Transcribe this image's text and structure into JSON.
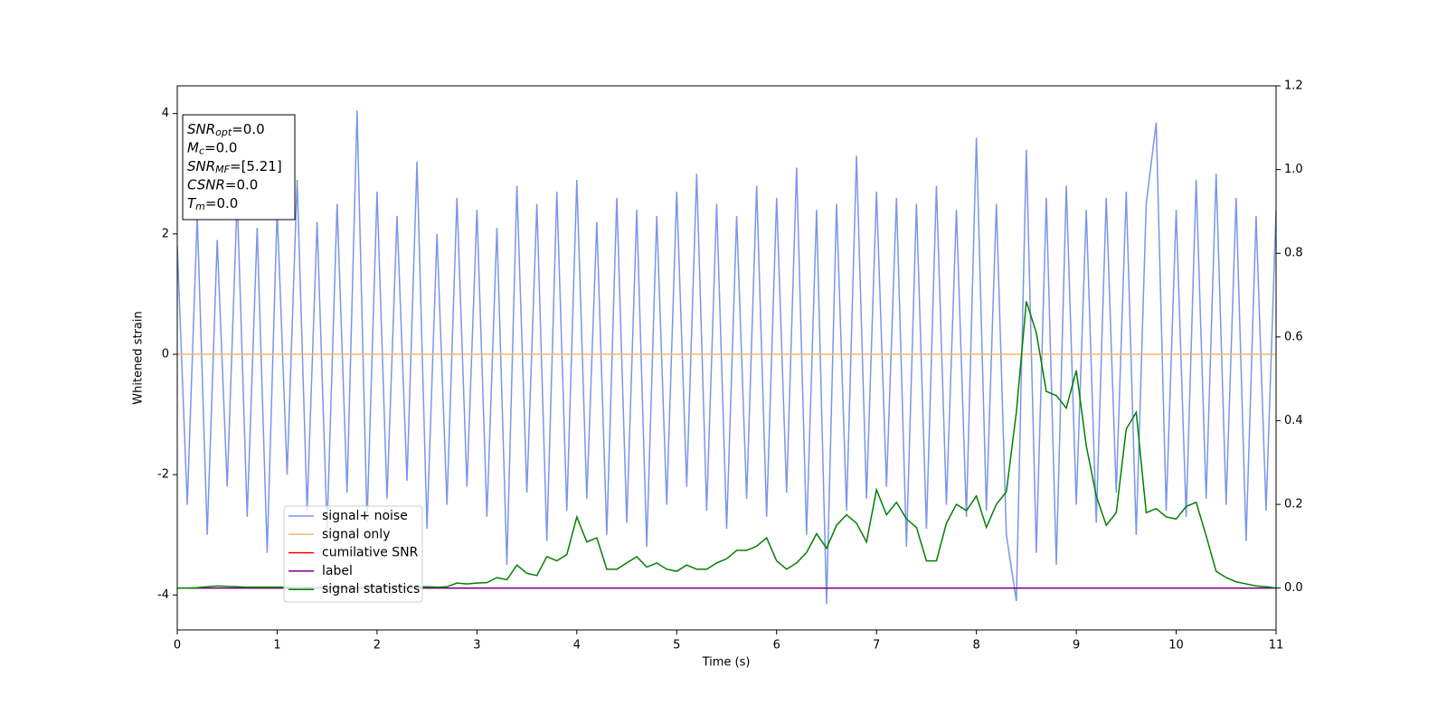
{
  "chart_data": {
    "type": "line",
    "xlabel": "Time (s)",
    "ylabel": "Whitened strain",
    "xlim": [
      0,
      11
    ],
    "xticks": [
      0,
      1,
      2,
      3,
      4,
      5,
      6,
      7,
      8,
      9,
      10,
      11
    ],
    "ylim": [
      -4.58,
      4.46
    ],
    "yticks": [
      -4,
      -2,
      0,
      2,
      4
    ],
    "y2lim": [
      -0.1,
      1.2
    ],
    "y2ticks": [
      {
        "value": 0,
        "label": "0.0"
      },
      0.2,
      0.4,
      0.6,
      0.8,
      {
        "value": 1,
        "label": "1.0"
      },
      1.2
    ],
    "x": [
      0,
      0.1,
      0.2,
      0.3,
      0.4,
      0.5,
      0.6,
      0.7,
      0.8,
      0.9,
      1,
      1.1,
      1.2,
      1.3,
      1.4,
      1.5,
      1.6,
      1.7,
      1.8,
      1.9,
      2,
      2.1,
      2.2,
      2.3,
      2.4,
      2.5,
      2.6,
      2.7,
      2.8,
      2.9,
      3,
      3.1,
      3.2,
      3.3,
      3.4,
      3.5,
      3.6,
      3.7,
      3.8,
      3.9,
      4,
      4.1,
      4.2,
      4.3,
      4.4,
      4.5,
      4.6,
      4.7,
      4.8,
      4.9,
      5,
      5.1,
      5.2,
      5.3,
      5.4,
      5.5,
      5.6,
      5.7,
      5.8,
      5.9,
      6,
      6.1,
      6.2,
      6.3,
      6.4,
      6.5,
      6.6,
      6.7,
      6.8,
      6.9,
      7,
      7.1,
      7.2,
      7.3,
      7.4,
      7.5,
      7.6,
      7.7,
      7.8,
      7.9,
      8,
      8.1,
      8.2,
      8.3,
      8.4,
      8.5,
      8.6,
      8.7,
      8.8,
      8.9,
      9,
      9.1,
      9.2,
      9.3,
      9.4,
      9.5,
      9.6,
      9.7,
      9.8,
      9.9,
      10,
      10.1,
      10.2,
      10.3,
      10.4,
      10.5,
      10.6,
      10.7,
      10.8,
      10.9,
      11
    ],
    "series": [
      {
        "name": "signal+ noise",
        "color": "#7b96e8",
        "values": [
          1.8,
          -2.5,
          2.3,
          -3.0,
          1.9,
          -2.2,
          2.6,
          -2.7,
          2.1,
          -3.3,
          2.4,
          -2.0,
          2.9,
          -2.6,
          2.2,
          -2.9,
          2.5,
          -2.3,
          4.05,
          -2.8,
          2.7,
          -2.4,
          2.3,
          -2.1,
          3.2,
          -2.9,
          2.0,
          -2.5,
          2.6,
          -2.2,
          2.4,
          -2.7,
          2.1,
          -3.5,
          2.8,
          -2.3,
          2.5,
          -3.1,
          2.7,
          -2.6,
          2.9,
          -2.4,
          2.2,
          -3.0,
          2.6,
          -2.8,
          2.4,
          -3.2,
          2.3,
          -2.5,
          2.7,
          -2.2,
          3.0,
          -2.6,
          2.5,
          -2.9,
          2.3,
          -2.4,
          2.8,
          -2.7,
          2.6,
          -2.3,
          3.1,
          -3.0,
          2.4,
          -4.15,
          2.5,
          -2.6,
          3.3,
          -2.4,
          2.7,
          -2.2,
          2.6,
          -3.2,
          2.5,
          -2.9,
          2.8,
          -2.5,
          2.4,
          -2.7,
          3.6,
          -2.6,
          2.5,
          -3.0,
          -4.1,
          3.4,
          -3.3,
          2.6,
          -3.5,
          2.8,
          -2.5,
          2.4,
          -2.8,
          2.6,
          -2.3,
          2.7,
          -3.0,
          2.5,
          3.85,
          -2.6,
          2.4,
          -2.7,
          2.9,
          -2.4,
          3.0,
          -2.5,
          2.6,
          -3.1,
          2.3,
          -2.6,
          2.4
        ]
      },
      {
        "name": "signal only",
        "color": "#f5b971",
        "x": [
          0,
          11
        ],
        "values": [
          0,
          0
        ]
      },
      {
        "name": "cumilative SNR",
        "color": "#ff0000",
        "axis": "y2",
        "x": [
          0,
          11
        ],
        "values": [
          0,
          0
        ]
      },
      {
        "name": "label",
        "color": "#800080",
        "axis": "y2",
        "x": [
          0,
          11
        ],
        "values": [
          0,
          0
        ]
      },
      {
        "name": "signal statistics",
        "color": "#008000",
        "axis": "y2",
        "values": [
          0,
          0,
          0.001,
          0.003,
          0.005,
          0.004,
          0.003,
          0.002,
          0.002,
          0.002,
          0.002,
          0.002,
          0.001,
          0.002,
          0.001,
          0.001,
          0.002,
          0.002,
          0.001,
          0.002,
          0.002,
          0.001,
          0.002,
          0.001,
          0.002,
          0.003,
          0.002,
          0.003,
          0.012,
          0.01,
          0.012,
          0.013,
          0.025,
          0.02,
          0.055,
          0.035,
          0.03,
          0.075,
          0.065,
          0.08,
          0.17,
          0.11,
          0.12,
          0.045,
          0.045,
          0.06,
          0.075,
          0.05,
          0.06,
          0.045,
          0.04,
          0.055,
          0.045,
          0.045,
          0.06,
          0.07,
          0.09,
          0.09,
          0.1,
          0.12,
          0.065,
          0.045,
          0.06,
          0.085,
          0.13,
          0.095,
          0.15,
          0.175,
          0.155,
          0.11,
          0.235,
          0.175,
          0.205,
          0.165,
          0.145,
          0.065,
          0.065,
          0.155,
          0.2,
          0.185,
          0.22,
          0.145,
          0.2,
          0.23,
          0.42,
          0.685,
          0.61,
          0.47,
          0.46,
          0.43,
          0.52,
          0.34,
          0.22,
          0.15,
          0.18,
          0.38,
          0.42,
          0.18,
          0.19,
          0.17,
          0.165,
          0.195,
          0.205,
          0.125,
          0.04,
          0.025,
          0.015,
          0.01,
          0.005,
          0.003,
          0
        ]
      }
    ],
    "annotations": [
      {
        "base": "SNR",
        "sub": "opt",
        "text": "=0.0"
      },
      {
        "base": "M",
        "sub": "c",
        "text": "=0.0"
      },
      {
        "base": "SNR",
        "sub": "MF",
        "text": "=[5.21]"
      },
      {
        "base": "CSNR",
        "text": "=0.0"
      },
      {
        "base": "T",
        "sub": "m",
        "text": "=0.0"
      }
    ]
  }
}
